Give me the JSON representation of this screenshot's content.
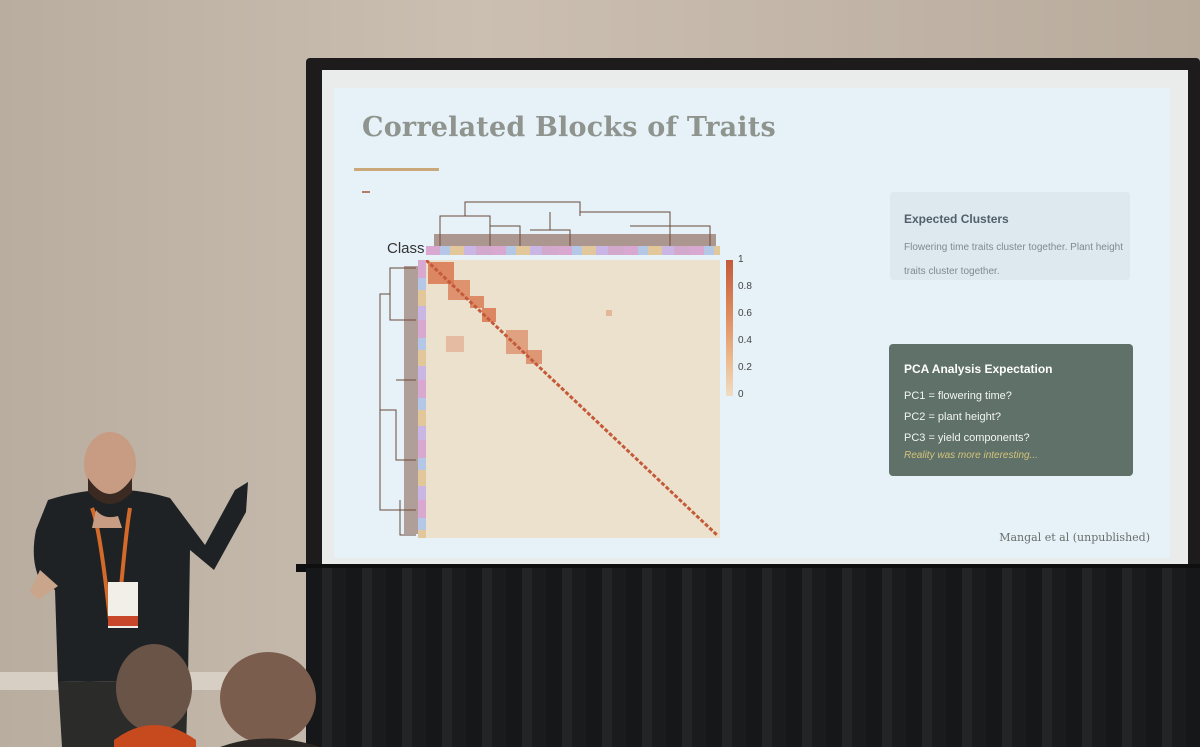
{
  "slide": {
    "title": "Correlated Blocks of Traits",
    "heatmap": {
      "class_label": "Class",
      "colorbar_ticks": [
        "1",
        "0.8",
        "0.6",
        "0.4",
        "0.2",
        "0"
      ]
    },
    "expected_clusters": {
      "heading": "Expected Clusters",
      "body": "Flowering time traits cluster together. Plant height traits cluster together."
    },
    "pca": {
      "heading": "PCA Analysis Expectation",
      "lines": [
        "PC1 = flowering time?",
        "PC2 = plant height?",
        "PC3 = yield components?"
      ],
      "note": "Reality was more interesting..."
    },
    "credit": "Mangal et al (unpublished)"
  },
  "colors": {
    "slide_background": "#e6f2f8",
    "title": "#8f948e",
    "title_rule": "#c9a97a",
    "pca_box": "#5f7168",
    "heatmap_high": "#c45a3a",
    "heatmap_low": "#ece1cc"
  }
}
